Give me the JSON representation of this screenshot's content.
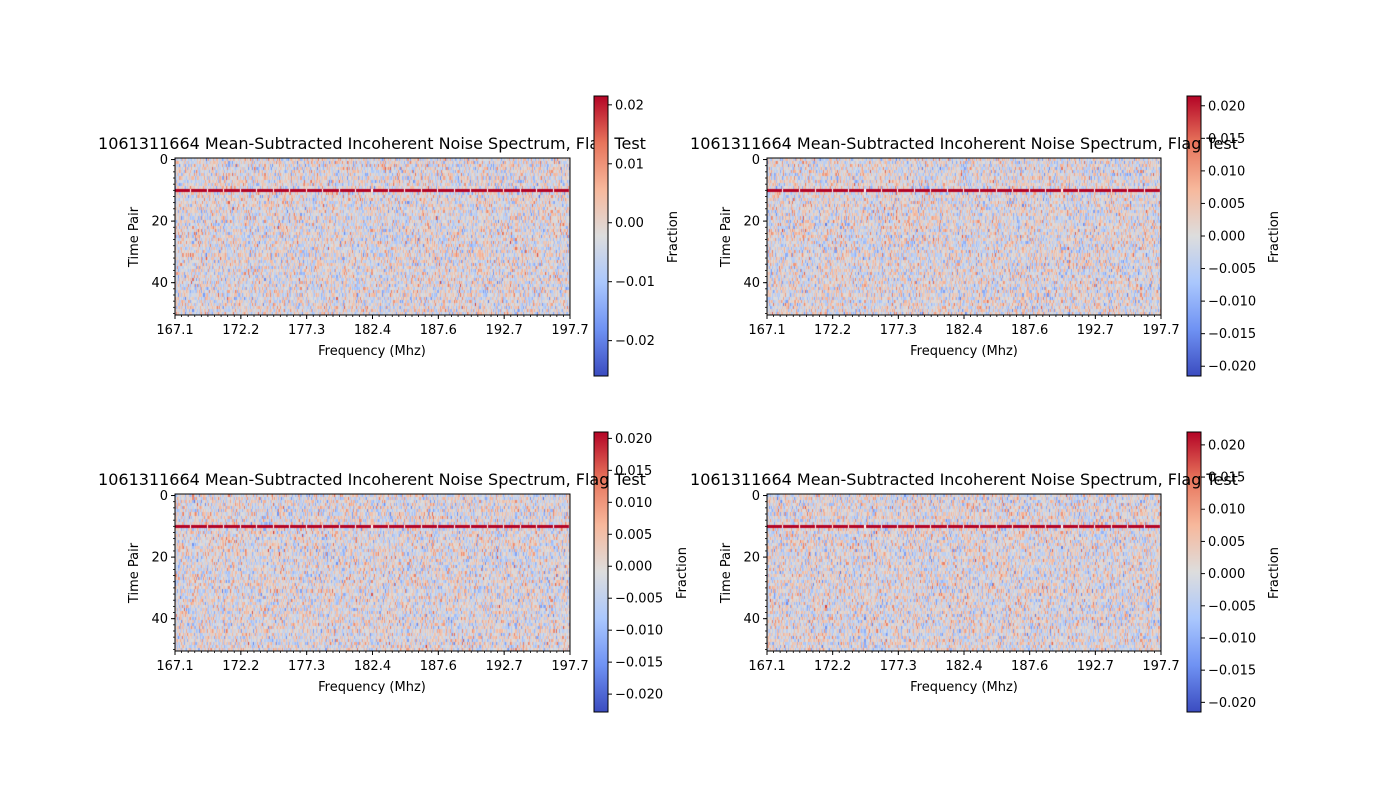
{
  "figure": {
    "background": "#ffffff"
  },
  "colormap": [
    "#3b4cc0",
    "#6f92f3",
    "#aac7fd",
    "#dddddd",
    "#f7b89c",
    "#e7745b",
    "#b40426"
  ],
  "chart_data": [
    {
      "type": "heatmap",
      "title": "1061311664 Mean-Subtracted Incoherent Noise Spectrum, Flag Test",
      "xlabel": "Frequency (Mhz)",
      "ylabel": "Time Pair",
      "xticks": [
        "167.1",
        "172.2",
        "177.3",
        "182.4",
        "187.6",
        "192.7",
        "197.7"
      ],
      "yticks": [
        0,
        20,
        40
      ],
      "ylim": [
        51,
        0
      ],
      "colorbar_label": "Fraction",
      "vmin": -0.026,
      "vmax": 0.0215,
      "colorbar_ticks": [
        "0.02",
        "0.01",
        "0.00",
        "−0.01",
        "−0.02"
      ],
      "colorbar_tick_values": [
        0.02,
        0.01,
        0.0,
        -0.01,
        -0.02
      ],
      "flagged_row": 10,
      "seed": 11
    },
    {
      "type": "heatmap",
      "title": "1061311664 Mean-Subtracted Incoherent Noise Spectrum, Flag Test",
      "xlabel": "Frequency (Mhz)",
      "ylabel": "Time Pair",
      "xticks": [
        "167.1",
        "172.2",
        "177.3",
        "182.4",
        "187.6",
        "192.7",
        "197.7"
      ],
      "yticks": [
        0,
        20,
        40
      ],
      "ylim": [
        51,
        0
      ],
      "colorbar_label": "Fraction",
      "vmin": -0.0215,
      "vmax": 0.0215,
      "colorbar_ticks": [
        "0.020",
        "0.015",
        "0.010",
        "0.005",
        "0.000",
        "−0.005",
        "−0.010",
        "−0.015",
        "−0.020"
      ],
      "colorbar_tick_values": [
        0.02,
        0.015,
        0.01,
        0.005,
        0.0,
        -0.005,
        -0.01,
        -0.015,
        -0.02
      ],
      "flagged_row": 10,
      "seed": 23
    },
    {
      "type": "heatmap",
      "title": "1061311664 Mean-Subtracted Incoherent Noise Spectrum, Flag Test",
      "xlabel": "Frequency (Mhz)",
      "ylabel": "Time Pair",
      "xticks": [
        "167.1",
        "172.2",
        "177.3",
        "182.4",
        "187.6",
        "192.7",
        "197.7"
      ],
      "yticks": [
        0,
        20,
        40
      ],
      "ylim": [
        51,
        0
      ],
      "colorbar_label": "Fraction",
      "vmin": -0.0228,
      "vmax": 0.021,
      "colorbar_ticks": [
        "0.020",
        "0.015",
        "0.010",
        "0.005",
        "0.000",
        "−0.005",
        "−0.010",
        "−0.015",
        "−0.020"
      ],
      "colorbar_tick_values": [
        0.02,
        0.015,
        0.01,
        0.005,
        0.0,
        -0.005,
        -0.01,
        -0.015,
        -0.02
      ],
      "flagged_row": 10,
      "seed": 37
    },
    {
      "type": "heatmap",
      "title": "1061311664 Mean-Subtracted Incoherent Noise Spectrum, Flag Test",
      "xlabel": "Frequency (Mhz)",
      "ylabel": "Time Pair",
      "xticks": [
        "167.1",
        "172.2",
        "177.3",
        "182.4",
        "187.6",
        "192.7",
        "197.7"
      ],
      "yticks": [
        0,
        20,
        40
      ],
      "ylim": [
        51,
        0
      ],
      "colorbar_label": "Fraction",
      "vmin": -0.0215,
      "vmax": 0.022,
      "colorbar_ticks": [
        "0.020",
        "0.015",
        "0.010",
        "0.005",
        "0.000",
        "−0.005",
        "−0.010",
        "−0.015",
        "−0.020"
      ],
      "colorbar_tick_values": [
        0.02,
        0.015,
        0.01,
        0.005,
        0.0,
        -0.005,
        -0.01,
        -0.015,
        -0.02
      ],
      "flagged_row": 10,
      "seed": 53
    }
  ]
}
